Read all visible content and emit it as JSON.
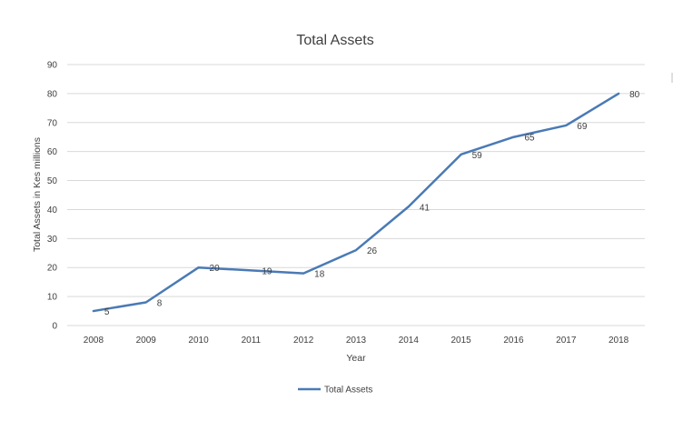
{
  "chart_data": {
    "type": "line",
    "title": "Total Assets",
    "xlabel": "Year",
    "ylabel": "Total Assets in Kes millions",
    "categories": [
      "2008",
      "2009",
      "2010",
      "2011",
      "2012",
      "2013",
      "2014",
      "2015",
      "2016",
      "2017",
      "2018"
    ],
    "series": [
      {
        "name": "Total Assets",
        "values": [
          5,
          8,
          20,
          19,
          18,
          26,
          41,
          59,
          65,
          69,
          80
        ],
        "color": "#4a7ab5"
      }
    ],
    "ylim": [
      0,
      90
    ],
    "yticks": [
      "0",
      "10",
      "20",
      "30",
      "40",
      "50",
      "60",
      "70",
      "80",
      "90"
    ],
    "grid": true,
    "legend_position": "bottom"
  }
}
